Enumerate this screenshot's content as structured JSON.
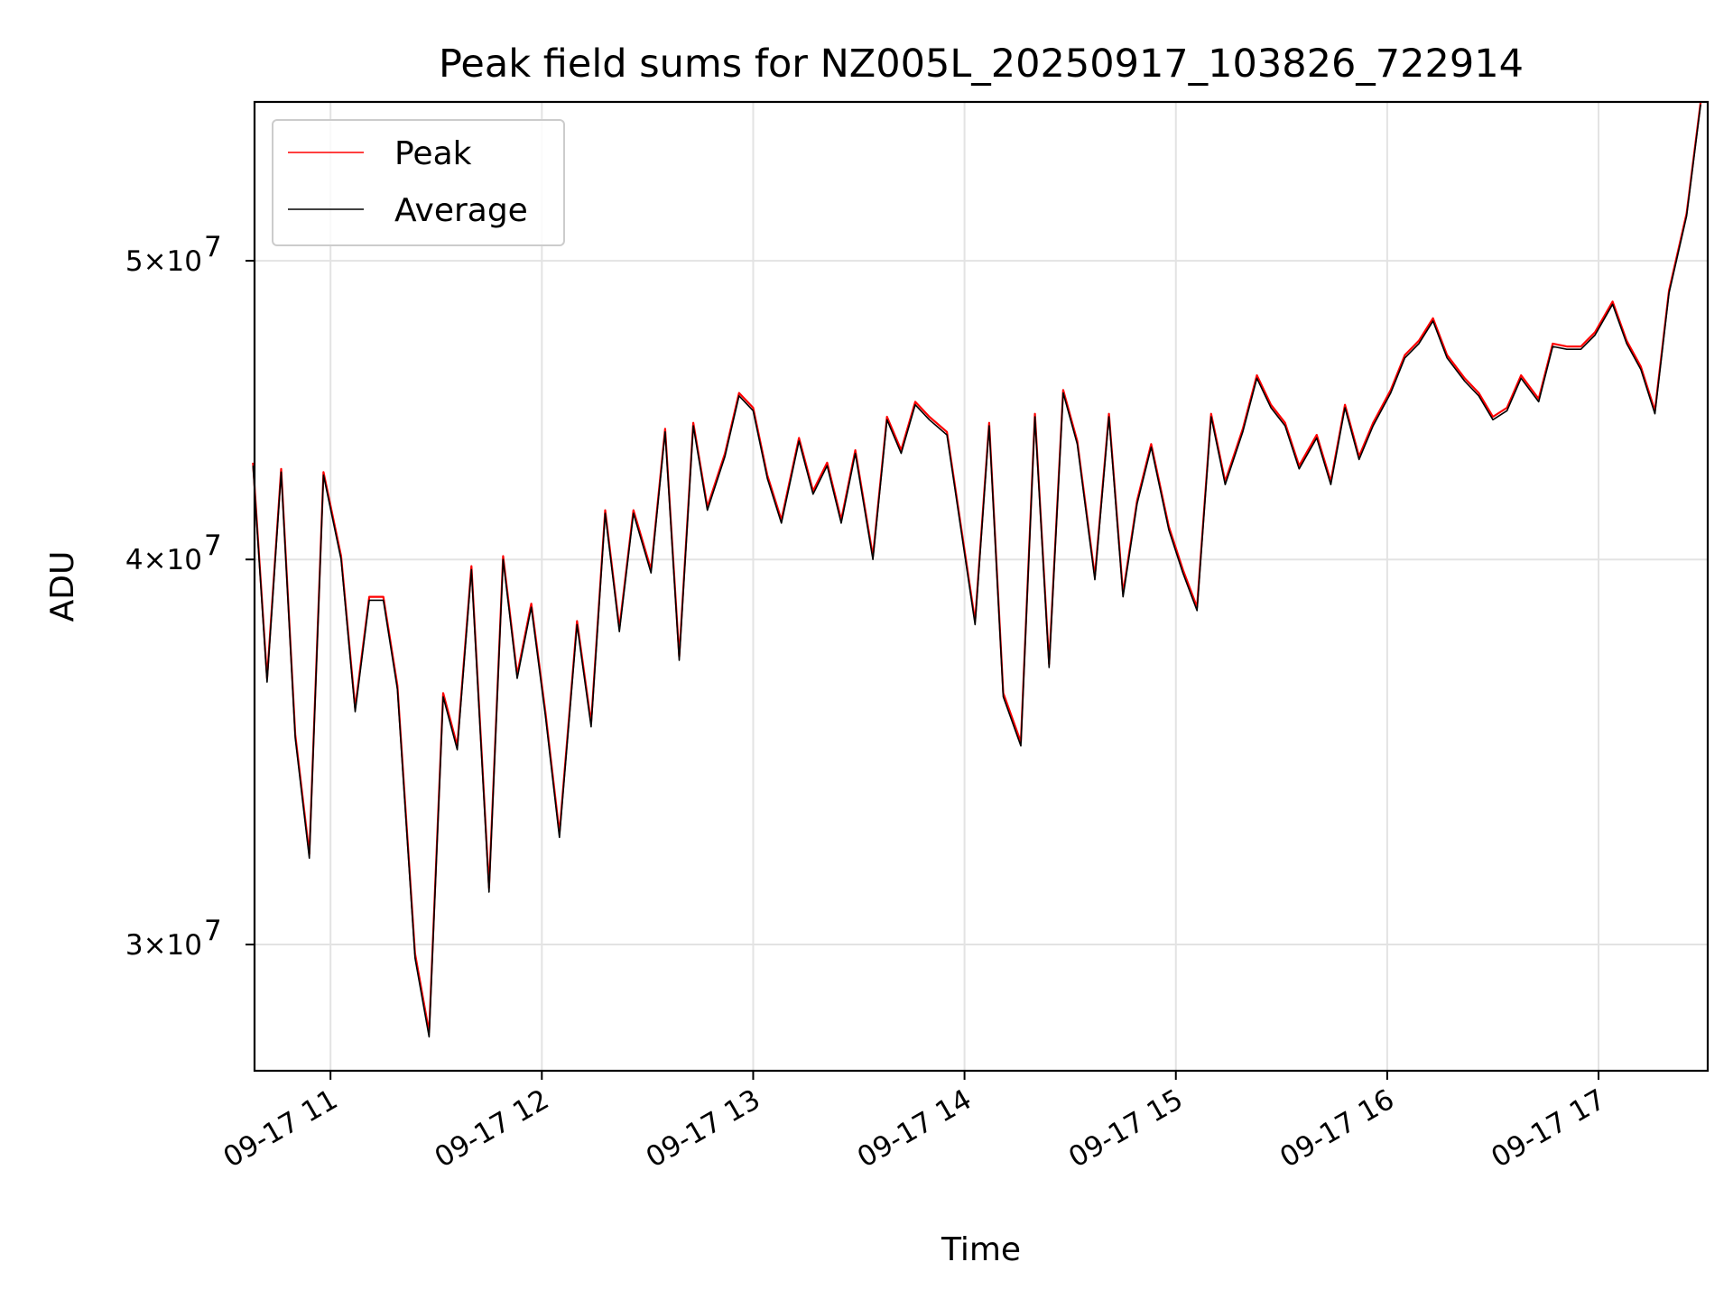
{
  "chart_data": {
    "type": "line",
    "title": "Peak field sums for NZ005L_20250917_103826_722914",
    "xlabel": "Time",
    "ylabel": "ADU",
    "yscale": "log",
    "ylim": [
      27300000,
      56300000
    ],
    "xlim": [
      "2025-09-17T10:38:26",
      "2025-09-17T17:31:00"
    ],
    "grid": true,
    "legend_position": "top-left",
    "x_ticks": [
      "09-17 11",
      "09-17 12",
      "09-17 13",
      "09-17 14",
      "09-17 15",
      "09-17 16",
      "09-17 17"
    ],
    "y_ticks": [
      {
        "label_base": "3×10",
        "label_exp": "7"
      },
      {
        "label_base": "4×10",
        "label_exp": "7"
      },
      {
        "label_base": "5×10",
        "label_exp": "7"
      }
    ],
    "colors": {
      "Peak": "#ff0000",
      "Average": "#000000"
    },
    "x": [
      "10:38",
      "10:42",
      "10:46",
      "10:50",
      "10:54",
      "10:58",
      "11:03",
      "11:07",
      "11:11",
      "11:15",
      "11:19",
      "11:24",
      "11:28",
      "11:32",
      "11:36",
      "11:40",
      "11:45",
      "11:49",
      "11:53",
      "11:57",
      "12:01",
      "12:05",
      "12:10",
      "12:14",
      "12:18",
      "12:22",
      "12:26",
      "12:31",
      "12:35",
      "12:39",
      "12:43",
      "12:47",
      "12:52",
      "12:56",
      "13:00",
      "13:04",
      "13:08",
      "13:13",
      "13:17",
      "13:21",
      "13:25",
      "13:29",
      "13:34",
      "13:38",
      "13:42",
      "13:46",
      "13:50",
      "13:55",
      "13:59",
      "14:03",
      "14:07",
      "14:11",
      "14:16",
      "14:20",
      "14:24",
      "14:28",
      "14:32",
      "14:37",
      "14:41",
      "14:45",
      "14:49",
      "14:53",
      "14:58",
      "15:02",
      "15:06",
      "15:10",
      "15:14",
      "15:19",
      "15:23",
      "15:27",
      "15:31",
      "15:35",
      "15:40",
      "15:44",
      "15:48",
      "15:52",
      "15:56",
      "16:01",
      "16:05",
      "16:09",
      "16:13",
      "16:17",
      "16:22",
      "16:26",
      "16:30",
      "16:34",
      "16:38",
      "16:43",
      "16:47",
      "16:51",
      "16:55",
      "16:59",
      "17:04",
      "17:08",
      "17:12",
      "17:16",
      "17:20",
      "17:25",
      "17:29"
    ],
    "series": [
      {
        "name": "Peak",
        "values": [
          43000000,
          36600000,
          42800000,
          35100000,
          32100000,
          42700000,
          40100000,
          35800000,
          38900000,
          38900000,
          36400000,
          29800000,
          28100000,
          36200000,
          34800000,
          39800000,
          31300000,
          40100000,
          36700000,
          38700000,
          35700000,
          32600000,
          38200000,
          35400000,
          41500000,
          38000000,
          41500000,
          39700000,
          44100000,
          37200000,
          44300000,
          41600000,
          43300000,
          45300000,
          44800000,
          42600000,
          41200000,
          43800000,
          42100000,
          43000000,
          41200000,
          43400000,
          40100000,
          44500000,
          43400000,
          45000000,
          44500000,
          44000000,
          41000000,
          38200000,
          44300000,
          36200000,
          34900000,
          44600000,
          37000000,
          45400000,
          43700000,
          39500000,
          44600000,
          39000000,
          41800000,
          43600000,
          41000000,
          39700000,
          38600000,
          44600000,
          42400000,
          44100000,
          45900000,
          44900000,
          44300000,
          42900000,
          43900000,
          42400000,
          44900000,
          43200000,
          44300000,
          45400000,
          46600000,
          47100000,
          47900000,
          46600000,
          45800000,
          45300000,
          44500000,
          44800000,
          45900000,
          45100000,
          47000000,
          46900000,
          46900000,
          47400000,
          48500000,
          47100000,
          46200000,
          44700000,
          48900000,
          51800000,
          56300000
        ]
      },
      {
        "name": "Average",
        "values": [
          42900000,
          36500000,
          42700000,
          35000000,
          32000000,
          42600000,
          40000000,
          35700000,
          38800000,
          38800000,
          36300000,
          29700000,
          28000000,
          36100000,
          34700000,
          39700000,
          31200000,
          40000000,
          36600000,
          38600000,
          35600000,
          32500000,
          38100000,
          35300000,
          41400000,
          37900000,
          41400000,
          39600000,
          44000000,
          37100000,
          44200000,
          41500000,
          43200000,
          45200000,
          44700000,
          42500000,
          41100000,
          43700000,
          42000000,
          42900000,
          41100000,
          43300000,
          40000000,
          44400000,
          43300000,
          44900000,
          44400000,
          43900000,
          40900000,
          38100000,
          44200000,
          36100000,
          34800000,
          44500000,
          36900000,
          45300000,
          43600000,
          39400000,
          44500000,
          38900000,
          41700000,
          43500000,
          40900000,
          39600000,
          38500000,
          44500000,
          42300000,
          44000000,
          45800000,
          44800000,
          44200000,
          42800000,
          43800000,
          42300000,
          44800000,
          43100000,
          44200000,
          45300000,
          46500000,
          47000000,
          47800000,
          46500000,
          45700000,
          45200000,
          44400000,
          44700000,
          45800000,
          45000000,
          46900000,
          46800000,
          46800000,
          47300000,
          48400000,
          47000000,
          46100000,
          44600000,
          48800000,
          51700000,
          56200000
        ]
      }
    ]
  }
}
